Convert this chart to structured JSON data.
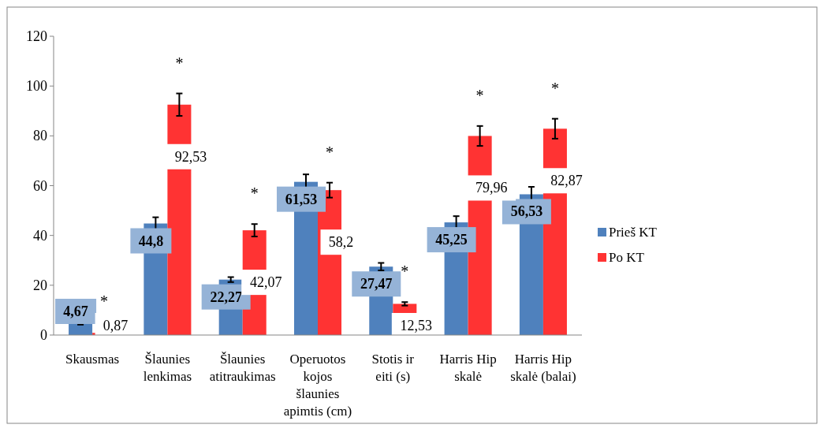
{
  "chart_data": {
    "type": "bar",
    "categories": [
      "Skausmas",
      "Šlaunies lenkimas",
      "Šlaunies atitraukimas",
      "Operuotos kojos šlaunies apimtis (cm)",
      "Stotis ir eiti (s)",
      "Harris Hip skalė",
      "Harris Hip skalė (balai)"
    ],
    "series": [
      {
        "name": "Prieš KT",
        "color": "#4f81bd",
        "values": [
          4.67,
          44.8,
          22.27,
          61.53,
          27.47,
          45.25,
          56.53
        ],
        "errors": [
          0.5,
          2.5,
          1,
          3,
          1.5,
          2.5,
          3
        ],
        "value_labels": [
          "4,67",
          "44,8",
          "22,27",
          "61,53",
          "27,47",
          "45,25",
          "56,53"
        ]
      },
      {
        "name": "Po KT",
        "color": "#ff3333",
        "values": [
          0.87,
          92.53,
          42.07,
          58.2,
          12.53,
          79.96,
          82.87
        ],
        "errors": [
          0.3,
          4.5,
          2.5,
          3,
          0.7,
          4,
          4
        ],
        "value_labels": [
          "0,87",
          "92,53",
          "42,07",
          "58,2",
          "12,53",
          "79,96",
          "82,87"
        ]
      }
    ],
    "ylim": [
      0,
      120
    ],
    "yticks": [
      0,
      20,
      40,
      60,
      80,
      100,
      120
    ],
    "legend": "right",
    "annotations": [
      "*",
      "*",
      "*",
      "*",
      "*",
      "*",
      "*"
    ]
  }
}
